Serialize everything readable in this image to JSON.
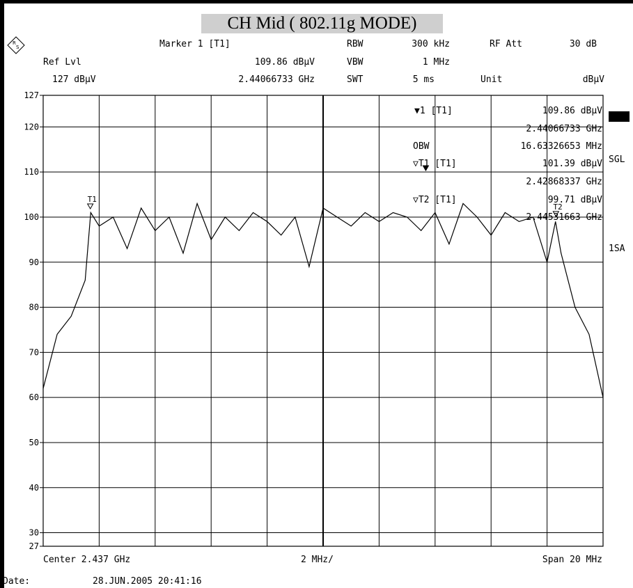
{
  "title": "CH Mid ( 802.11g MODE)",
  "header": {
    "ref_lvl_label": "Ref Lvl",
    "ref_lvl_value": "127 dBµV",
    "marker_label": "Marker 1 [T1]",
    "marker_level": "109.86 dBµV",
    "marker_freq": "2.44066733 GHz",
    "rbw_label": "RBW",
    "rbw_value": "300 kHz",
    "vbw_label": "VBW",
    "vbw_value": "1 MHz",
    "swt_label": "SWT",
    "swt_value": "5 ms",
    "rf_att_label": "RF Att",
    "rf_att_value": "30 dB",
    "unit_label": "Unit",
    "unit_value": "dBµV"
  },
  "markers_readout": {
    "m1_label": "▼1 [T1]",
    "m1_level": "109.86 dBµV",
    "m1_freq": "2.44066733 GHz",
    "obw_label": "OBW",
    "obw_value": "16.63326653 MHz",
    "t1_label": "▽T1 [T1]",
    "t1_level": "101.39 dBµV",
    "t1_freq": "2.42868337 GHz",
    "t2_label": "▽T2 [T1]",
    "t2_level": "99.71 dBµV",
    "t2_freq": "2.44531663 GHz"
  },
  "side_labels": {
    "sgl": "SGL",
    "isa": "1SA"
  },
  "footer": {
    "center": "Center 2.437 GHz",
    "div": "2 MHz/",
    "span": "Span 20 MHz",
    "date_label": "Date:",
    "date_value": "28.JUN.2005  20:41:16"
  },
  "trace_marker_labels": {
    "t1": "T1",
    "t2": "T2"
  },
  "chart_data": {
    "type": "line",
    "xlabel": "",
    "ylabel": "",
    "x_unit": "GHz",
    "xlim": [
      2.427,
      2.447
    ],
    "ylim": [
      27,
      127
    ],
    "y_ticks": [
      127,
      120,
      110,
      100,
      90,
      80,
      70,
      60,
      50,
      40,
      30,
      27
    ],
    "grid": true,
    "series": [
      {
        "x": [
          2.427,
          2.4275,
          2.428,
          2.4285,
          2.4287,
          2.429,
          2.4295,
          2.43,
          2.4305,
          2.431,
          2.4315,
          2.432,
          2.4325,
          2.433,
          2.4335,
          2.434,
          2.4345,
          2.435,
          2.4355,
          2.436,
          2.4365,
          2.437,
          2.4375,
          2.438,
          2.4385,
          2.439,
          2.4395,
          2.44,
          2.4405,
          2.441,
          2.4415,
          2.442,
          2.4425,
          2.443,
          2.4435,
          2.444,
          2.4445,
          2.445,
          2.4453,
          2.4455,
          2.446,
          2.4465,
          2.447
        ],
        "y": [
          62,
          74,
          78,
          86,
          101,
          98,
          100,
          93,
          102,
          97,
          100,
          92,
          103,
          95,
          100,
          97,
          101,
          99,
          96,
          100,
          89,
          102,
          100,
          98,
          101,
          99,
          101,
          100,
          97,
          101,
          94,
          103,
          100,
          96,
          101,
          99,
          100,
          90,
          99,
          92,
          80,
          74,
          60
        ]
      }
    ],
    "markers": [
      {
        "name": "1",
        "x": 2.44066733,
        "y": 109.86
      },
      {
        "name": "T1",
        "x": 2.42868337,
        "y": 101.39
      },
      {
        "name": "T2",
        "x": 2.44531663,
        "y": 99.71
      }
    ]
  }
}
